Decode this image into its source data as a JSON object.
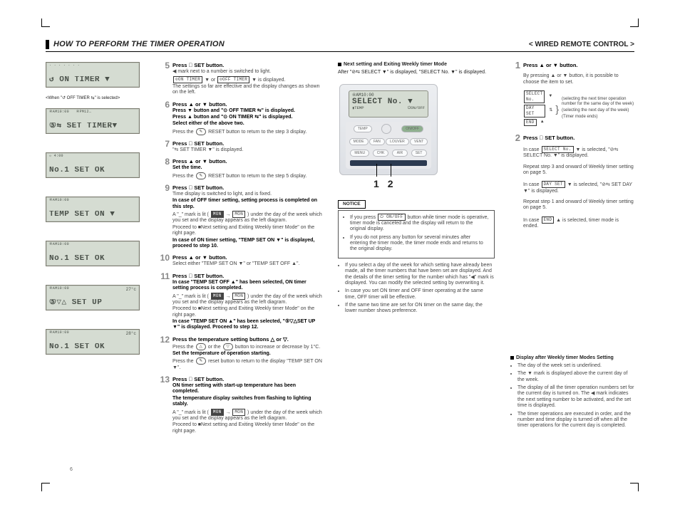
{
  "header": {
    "title_left": "HOW TO PERFORM THE TIMER OPERATION",
    "title_right": "WIRED REMOTE CONTROL"
  },
  "page_number": "6",
  "when_note": "<When \"↺ OFF TIMER  ⇆\" is selected>",
  "lcd_panels": [
    {
      "top": "· · · · · · ·",
      "tr": "",
      "main": "↺ ON TIMER    ▼"
    },
    {
      "top": "④AM10:00   ④PM12…",
      "tr": "",
      "main": "⑤⇆ SET TIMER▼"
    },
    {
      "top": "☼ 4:00",
      "tr": "",
      "main": "No.1 SET OK"
    },
    {
      "top": "④AM10:00",
      "tr": "",
      "main": "TEMP SET ON  ▼"
    },
    {
      "top": "④AM10:00",
      "tr": "",
      "main": "No.1 SET OK"
    },
    {
      "top": "④AM10:00",
      "tr": "27°c",
      "main": "⑤▽△ SET UP"
    },
    {
      "top": "④AM10:00",
      "tr": "28°c",
      "main": "No.1 SET OK"
    }
  ],
  "steps": [
    {
      "n": "5",
      "title": "Press ⃝ SET button.",
      "lines": [
        "◀ mark next to a number is switched to light.",
        "<chip>⊙ON TIMER</chip> ▼ or <chip>⊙OFF TIMER</chip> ▼ is displayed.",
        "The settings so far are effective and the display changes as shown on the left."
      ]
    },
    {
      "n": "6",
      "title": "Press ▲ or ▼ button.",
      "lines": [
        "<b>Press ▼ button and \"⊙ OFF TIMER  ⇆\" is displayed.</b>",
        "<b>Press ▲ button and \"⊙ ON TIMER  ⇆\" is displayed.</b>",
        "<b>Select either of the above two.</b>",
        "Press the <pill>✎</pill> RESET button to return to the step 3 display."
      ]
    },
    {
      "n": "7",
      "title": "Press ⃝ SET button.",
      "lines": [
        "\"⇆ SET TIMER ▼\" is displayed."
      ]
    },
    {
      "n": "8",
      "title": "Press ▲ or ▼ button.",
      "lines": [
        "<b>Set the time.</b>",
        "Press the <pill>✎</pill> RESET button to return to the step 5 display."
      ]
    },
    {
      "n": "9",
      "title": "Press ⃝ SET button.",
      "lines": [
        "Time display is switched to light, and is fixed.",
        "<b>In case of OFF timer setting, setting process is completed on this step.</b>",
        "A \"_\" mark is lit ( <chip class='dark'>MON</chip> → <chip>MON</chip> ) under the day of the week which you set and the display appears as the left diagram.",
        "Proceed to ■Next setting and Exiting Weekly timer Mode\" on the right page.",
        "<b>In case of ON timer setting, \"TEMP SET ON ▼\" is displayed, proceed to step 10.</b>"
      ]
    },
    {
      "n": "10",
      "title": "Press ▲ or ▼ button.",
      "lines": [
        "Select either \"TEMP SET ON ▼\" or \"TEMP SET OFF ▲\"."
      ]
    },
    {
      "n": "11",
      "title": "Press ⃝ SET button.",
      "lines": [
        "<b>In case \"TEMP SET OFF ▲\" has been selected, ON timer setting process is completed.</b>",
        "A \"_\" mark is lit ( <chip class='dark'>MON</chip> → <chip>MON</chip> ) under the day of the week which you set and the display appears as the left diagram.",
        "Proceed to ■Next setting and Exiting Weekly timer Mode\" on the right page.",
        "<b>In case \"TEMP SET ON ▲\" has been selected, \"⑤▽△SET UP ▼\" is displayed. Proceed to step 12.</b>"
      ]
    },
    {
      "n": "12",
      "title": "Press the temperature setting buttons △ or ▽.",
      "lines": [
        "Press the <pill>△</pill> or the <pill>▽</pill> button to increase or decrease by 1°C.",
        "<b>Set the temperature of operation starting.</b>",
        "Press the <pill>✎</pill> reset button to return to the display \"TEMP SET ON ▼\"."
      ]
    },
    {
      "n": "13",
      "title": "Press ⃝ SET button.",
      "lines": [
        "<b>ON timer setting with start-up temperature has been completed.</b>",
        "<b>The temperature display switches from flashing to lighting stably.</b>",
        "A \"_\" mark is lit ( <chip class='dark'>MON</chip> → <chip>MON</chip> ) under the day of the week which you set and the display appears as the left diagram.",
        "Proceed to ■Next setting and Exiting Weekly timer Mode\" on the right page."
      ]
    }
  ],
  "right_top": {
    "subhead": "Next setting and Exiting Weekly timer Mode",
    "after": "After \"⊘⇆ SELECT ▼\" is displayed, \"SELECT No. ▼\" is displayed."
  },
  "remote": {
    "screen_l1": "④AM10:00",
    "screen_main": "SELECT No. ▼",
    "screen_left": "▮TEMP",
    "screen_right": "⏻ON/OFF",
    "row1": [
      "TEMP",
      "",
      "ON/OFF"
    ],
    "row2": [
      "MODE",
      "FAN",
      "LOUVER",
      "VENT"
    ],
    "row3": [
      "MENU",
      "CHK",
      "AIR",
      "SET"
    ],
    "callouts": [
      "1",
      "2"
    ]
  },
  "rsteps": [
    {
      "n": "1",
      "title": "Press ▲ or ▼ button.",
      "body": "By pressing ▲ or ▼ button, it is possible to choose the item to set.",
      "rows": [
        {
          "chip": "SELECT No.",
          "arrow": "▼",
          "note": "(selecting the next timer operation number for the same day of the week)"
        },
        {
          "chip": "DAY SET",
          "arrow": "⇅",
          "note": "(selecting the next day of the week)"
        },
        {
          "chip": "END",
          "arrow": "▲",
          "note": "(Timer mode ends)"
        }
      ]
    },
    {
      "n": "2",
      "title": "Press ⃝ SET button.",
      "lines": [
        "In case <chip>SELECT No.</chip> ▼ is selected, \"⊘⇆ SELECT No. ▼\" is displayed.",
        "Repeat step 3 and onward of Weekly timer setting on page 5.",
        "In case <chip>DAY SET</chip> ▼ is selected, \"⊘⇆ SET DAY ▼\" is displayed.",
        "Repeat step 1 and onward of Weekly timer setting on page 5.",
        "In case <chip>END</chip> ▲ is selected, timer mode is ended."
      ]
    }
  ],
  "notice": {
    "label": "NOTICE",
    "items": [
      "If you press <chip>⏻ ON/OFF</chip> button while timer mode is operative, timer mode is canceled and the display will return to the original display.",
      "If you do not press any button for several minutes after entering the timer mode, the timer mode ends and returns to the original display."
    ]
  },
  "below_notice": [
    "If you select a day of the week for which setting have already been made, all the timer numbers that have been set are displayed. And the details of the timer setting for the number which has \"◀\" mark is displayed. You can modify the selected setting by overwriting it.",
    "In case you set ON timer and OFF timer operating at the same time, OFF timer will be effective.",
    "If the same two time are set for ON timer on the same day, the lower number shows preference."
  ],
  "after_setting": {
    "subhead": "Display after Weekly timer Modes Setting",
    "items": [
      "The day of the week set is underlined.",
      "The ▼ mark is displayed above the current day of the week.",
      "The display of all the timer operation numbers set for the current day is turned on. The ◀ mark indicates the next setting number to be activated, and the set time is displayed.",
      "The timer operations are executed in order, and the number and time display is turned off when all the timer operations for the current day is completed."
    ]
  }
}
